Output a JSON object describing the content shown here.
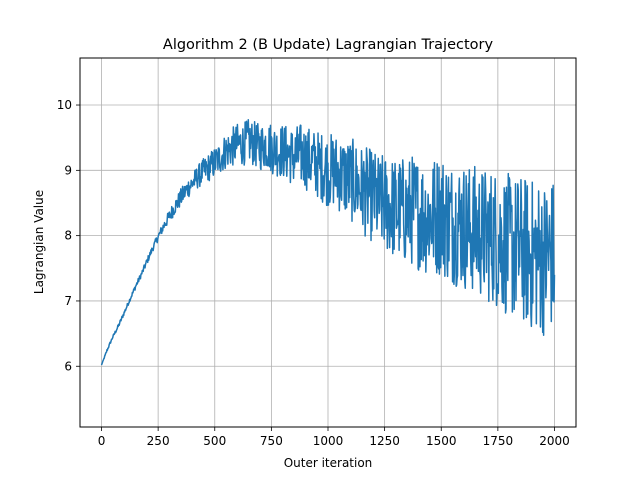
{
  "chart_data": {
    "type": "line",
    "title": "Algorithm 2 (B Update) Lagrangian Trajectory",
    "xlabel": "Outer iteration",
    "ylabel": "Lagrangian Value",
    "xlim": [
      -95,
      2095
    ],
    "ylim": [
      5.07,
      10.72
    ],
    "x_ticks": [
      0,
      250,
      500,
      750,
      1000,
      1250,
      1500,
      1750,
      2000
    ],
    "x_tick_labels": [
      "0",
      "250",
      "500",
      "750",
      "1000",
      "1250",
      "1500",
      "1750",
      "2000"
    ],
    "y_ticks": [
      6,
      7,
      8,
      9,
      10
    ],
    "y_tick_labels": [
      "6",
      "7",
      "8",
      "9",
      "10"
    ],
    "grid": true,
    "series_color": "#1f77b4",
    "series": [
      {
        "x": [
          0,
          25,
          50,
          75,
          100,
          125,
          150,
          175,
          200,
          225,
          250,
          275,
          300,
          325,
          350,
          375,
          400,
          425,
          450,
          475,
          500,
          525,
          550,
          575,
          600,
          625,
          650,
          675,
          700,
          725,
          750,
          775,
          800,
          825,
          850,
          875,
          900,
          925,
          950,
          975,
          1000,
          1025,
          1050,
          1075,
          1100,
          1125,
          1150,
          1175,
          1200,
          1225,
          1250,
          1275,
          1300,
          1325,
          1350,
          1375,
          1400,
          1425,
          1450,
          1475,
          1500,
          1525,
          1550,
          1575,
          1600,
          1625,
          1650,
          1675,
          1700,
          1725,
          1750,
          1775,
          1800,
          1825,
          1850,
          1875,
          1900,
          1925,
          1950,
          1975,
          2000
        ],
        "y": [
          6.02,
          6.25,
          6.45,
          6.62,
          6.82,
          7.02,
          7.22,
          7.4,
          7.6,
          7.8,
          7.98,
          8.15,
          8.3,
          8.45,
          8.58,
          8.7,
          8.8,
          8.9,
          8.98,
          9.05,
          9.12,
          9.2,
          9.3,
          9.35,
          9.4,
          9.4,
          9.45,
          9.4,
          9.35,
          9.4,
          9.35,
          9.3,
          9.3,
          9.25,
          9.2,
          9.25,
          9.2,
          9.15,
          9.1,
          9.05,
          9.0,
          9.0,
          8.95,
          8.9,
          8.85,
          8.8,
          8.7,
          8.65,
          8.6,
          8.5,
          8.5,
          8.45,
          8.4,
          8.4,
          8.35,
          8.4,
          8.35,
          8.3,
          8.3,
          8.3,
          8.35,
          8.25,
          8.2,
          8.2,
          8.15,
          8.1,
          8.1,
          8.05,
          8.0,
          8.0,
          7.95,
          7.9,
          7.85,
          7.8,
          7.8,
          7.75,
          7.7,
          7.7,
          7.65,
          7.7,
          7.7
        ],
        "noise_amplitude": [
          0.0,
          0.02,
          0.02,
          0.03,
          0.03,
          0.03,
          0.04,
          0.04,
          0.05,
          0.05,
          0.06,
          0.08,
          0.1,
          0.12,
          0.14,
          0.15,
          0.16,
          0.18,
          0.2,
          0.22,
          0.24,
          0.26,
          0.28,
          0.3,
          0.32,
          0.33,
          0.34,
          0.35,
          0.36,
          0.38,
          0.4,
          0.4,
          0.42,
          0.44,
          0.46,
          0.48,
          0.5,
          0.5,
          0.52,
          0.54,
          0.56,
          0.58,
          0.6,
          0.62,
          0.64,
          0.66,
          0.68,
          0.7,
          0.72,
          0.74,
          0.76,
          0.78,
          0.8,
          0.82,
          0.84,
          0.86,
          0.88,
          0.9,
          0.92,
          0.94,
          0.95,
          0.96,
          0.97,
          0.98,
          0.99,
          1.0,
          1.0,
          1.02,
          1.04,
          1.06,
          1.08,
          1.1,
          1.1,
          1.12,
          1.14,
          1.16,
          1.18,
          1.2,
          1.2,
          1.2,
          1.2
        ]
      }
    ]
  }
}
